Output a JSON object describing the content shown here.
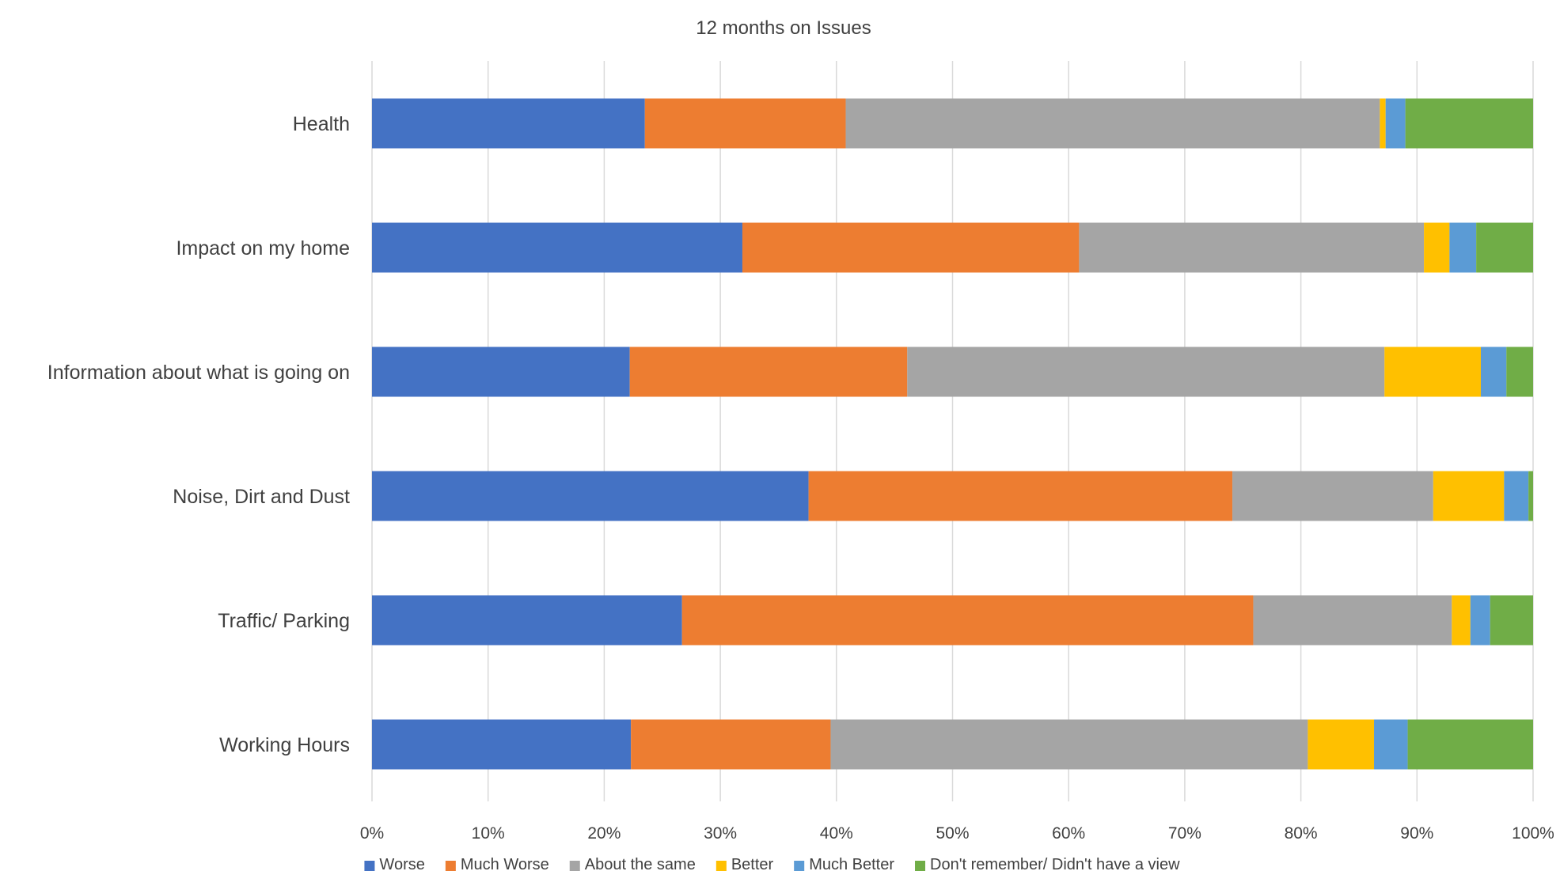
{
  "chart_data": {
    "type": "bar",
    "orientation": "horizontal",
    "stacked": "percent",
    "title": "12 months on Issues",
    "xlabel": "",
    "ylabel": "",
    "xlim": [
      0,
      100
    ],
    "x_ticks": [
      "0%",
      "10%",
      "20%",
      "30%",
      "40%",
      "50%",
      "60%",
      "70%",
      "80%",
      "90%",
      "100%"
    ],
    "grid": "vertical",
    "legend_position": "bottom",
    "categories": [
      "Health",
      "Impact on my home",
      "Information about what is going on",
      "Noise, Dirt and Dust",
      "Traffic/ Parking",
      "Working Hours"
    ],
    "series": [
      {
        "name": "Worse",
        "color": "#4472c4",
        "values": [
          23.5,
          31.9,
          22.2,
          37.6,
          26.7,
          22.3
        ]
      },
      {
        "name": "Much Worse",
        "color": "#ed7d31",
        "values": [
          17.3,
          29.0,
          23.9,
          36.5,
          49.2,
          17.2
        ]
      },
      {
        "name": "About the same",
        "color": "#a5a5a5",
        "values": [
          46.0,
          29.7,
          41.1,
          17.3,
          17.1,
          41.1
        ]
      },
      {
        "name": "Better",
        "color": "#ffc000",
        "values": [
          0.5,
          2.2,
          8.3,
          6.1,
          1.6,
          5.7
        ]
      },
      {
        "name": "Much Better",
        "color": "#5b9bd5",
        "values": [
          1.7,
          2.3,
          2.2,
          2.1,
          1.7,
          2.9
        ]
      },
      {
        "name": "Don't remember/ Didn't have a view",
        "color": "#70ad47",
        "values": [
          11.0,
          4.9,
          2.3,
          0.4,
          3.7,
          10.8
        ]
      }
    ]
  }
}
